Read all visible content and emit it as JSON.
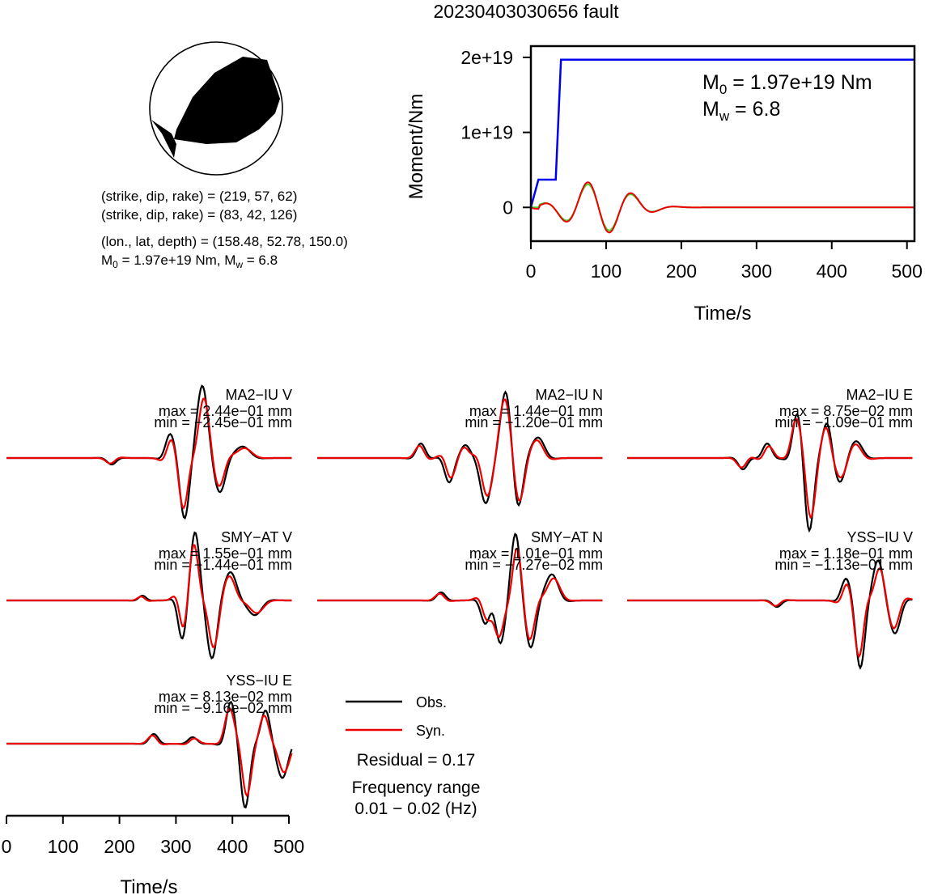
{
  "title": "20230403030656 fault",
  "colors": {
    "obs": "#000000",
    "syn": "#ee0000",
    "moment": "#0000ee",
    "green": "#33dd33"
  },
  "mechanism": {
    "planes": [
      [
        219,
        57,
        62
      ],
      [
        83,
        42,
        126
      ]
    ],
    "lines": {
      "plane1": "(strike, dip, rake) = (219, 57, 62)",
      "plane2": "(strike, dip, rake) = (83, 42, 126)",
      "location": "(lon., lat, depth) = (158.48, 52.78, 150.0)",
      "moment_prefix": "M",
      "moment_sub": "0",
      "moment_mid": " = 1.97e+19 Nm, M",
      "moment_sub2": "w",
      "moment_end": " = 6.8"
    }
  },
  "chart_data": [
    {
      "type": "line",
      "name": "moment",
      "xlabel": "Time/s",
      "ylabel": "Moment/Nm",
      "xlim": [
        0,
        510
      ],
      "ylim": [
        -4.5e+18,
        2.15e+19
      ],
      "xticks": [
        0,
        100,
        200,
        300,
        400,
        500
      ],
      "ytick_values": [
        0,
        1e+19,
        2e+19
      ],
      "ytick_labels": [
        "0",
        "1e+19",
        "2e+19"
      ],
      "annotation": {
        "m0_prefix": "M",
        "m0_sub": "0",
        "m0_rest": " = 1.97e+19 Nm",
        "mw_prefix": "M",
        "mw_sub": "w",
        "mw_rest": " = 6.8"
      },
      "series": [
        {
          "name": "",
          "color": "#0000ee",
          "x": [
            0,
            10,
            10,
            33,
            33,
            40,
            40,
            510
          ],
          "y": [
            0,
            3.7e+18,
            3.7e+18,
            3.7e+18,
            3.7e+18,
            1.97e+19,
            1.97e+19,
            1.97e+19
          ]
        }
      ]
    },
    {
      "type": "line",
      "name": "waveforms",
      "xlabel": "Time/s",
      "xlim": [
        0,
        510
      ],
      "xticks": [
        0,
        100,
        200,
        300,
        400,
        500
      ],
      "legend": {
        "obs": "Obs.",
        "syn": "Syn."
      },
      "residual": "Residual = 0.17",
      "frequency_label": "Frequency range",
      "frequency_value": "0.01 − 0.02 (Hz)",
      "stations": [
        {
          "name": "MA2−IU V",
          "max": "max = 2.44e−01 mm",
          "min": "min = −2.45e−01 mm"
        },
        {
          "name": "MA2−IU N",
          "max": "max = 1.44e−01 mm",
          "min": "min = −1.20e−01 mm"
        },
        {
          "name": "MA2−IU E",
          "max": "max = 8.75e−02 mm",
          "min": "min = −1.09e−01 mm"
        },
        {
          "name": "SMY−AT V",
          "max": "max = 1.55e−01 mm",
          "min": "min = −1.44e−01 mm"
        },
        {
          "name": "SMY−AT N",
          "max": "max = 1.01e−01 mm",
          "min": "min = −7.27e−02 mm"
        },
        {
          "name": "YSS−IU V",
          "max": "max = 1.18e−01 mm",
          "min": "min = −1.13e−01 mm"
        },
        {
          "name": "YSS−IU E",
          "max": "max = 8.13e−02 mm",
          "min": "min = −9.16e−02 mm"
        }
      ]
    }
  ]
}
